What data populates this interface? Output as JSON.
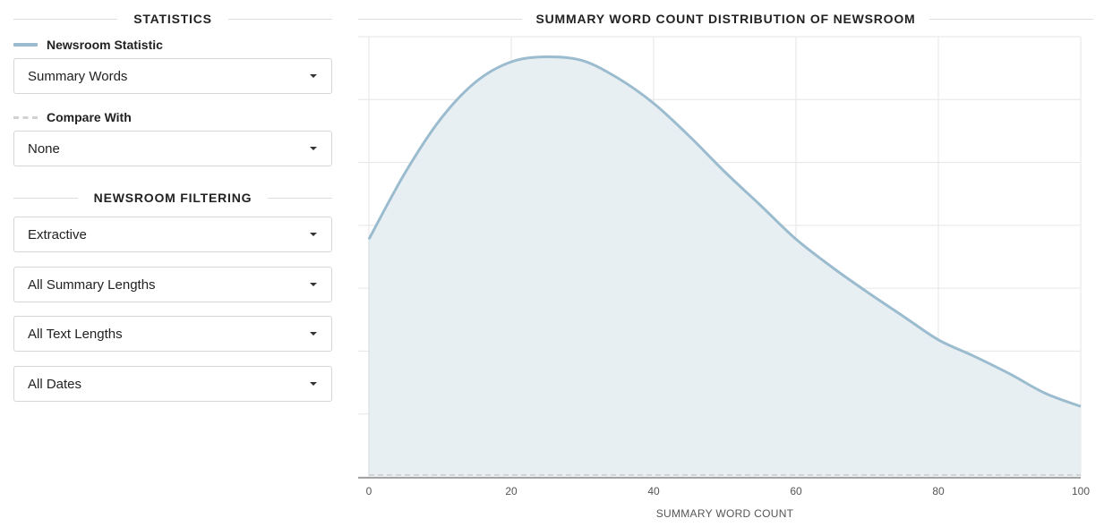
{
  "sidebar": {
    "statistics_title": "STATISTICS",
    "newsroom_statistic_label": "Newsroom Statistic",
    "newsroom_statistic_value": "Summary Words",
    "compare_with_label": "Compare With",
    "compare_with_value": "None",
    "filtering_title": "NEWSROOM FILTERING",
    "filters": [
      "Extractive",
      "All Summary Lengths",
      "All Text Lengths",
      "All Dates"
    ]
  },
  "colors": {
    "series_line": "#9bbccf",
    "series_fill": "#e8eff3",
    "compare_line": "#d2d2d2",
    "grid": "#e6e6e6"
  },
  "chart_data": {
    "type": "area",
    "title": "SUMMARY WORD COUNT DISTRIBUTION OF NEWSROOM",
    "xlabel": "SUMMARY WORD COUNT",
    "ylabel": "",
    "xlim": [
      0,
      100
    ],
    "ylim": [
      0,
      7
    ],
    "x_ticks": [
      "0",
      "20",
      "40",
      "60",
      "80",
      "100"
    ],
    "grid": true,
    "series": [
      {
        "name": "Newsroom Statistic",
        "style": "solid",
        "x": [
          0,
          5,
          10,
          15,
          20,
          25,
          30,
          35,
          40,
          45,
          50,
          55,
          60,
          65,
          70,
          75,
          80,
          85,
          90,
          95,
          100
        ],
        "y": [
          3.78,
          4.82,
          5.68,
          6.28,
          6.6,
          6.68,
          6.62,
          6.34,
          5.94,
          5.42,
          4.85,
          4.32,
          3.78,
          3.34,
          2.94,
          2.56,
          2.18,
          1.92,
          1.64,
          1.33,
          1.12
        ]
      },
      {
        "name": "Compare With",
        "style": "dashed",
        "x": [
          0,
          100
        ],
        "y": [
          0.03,
          0.03
        ]
      }
    ]
  }
}
